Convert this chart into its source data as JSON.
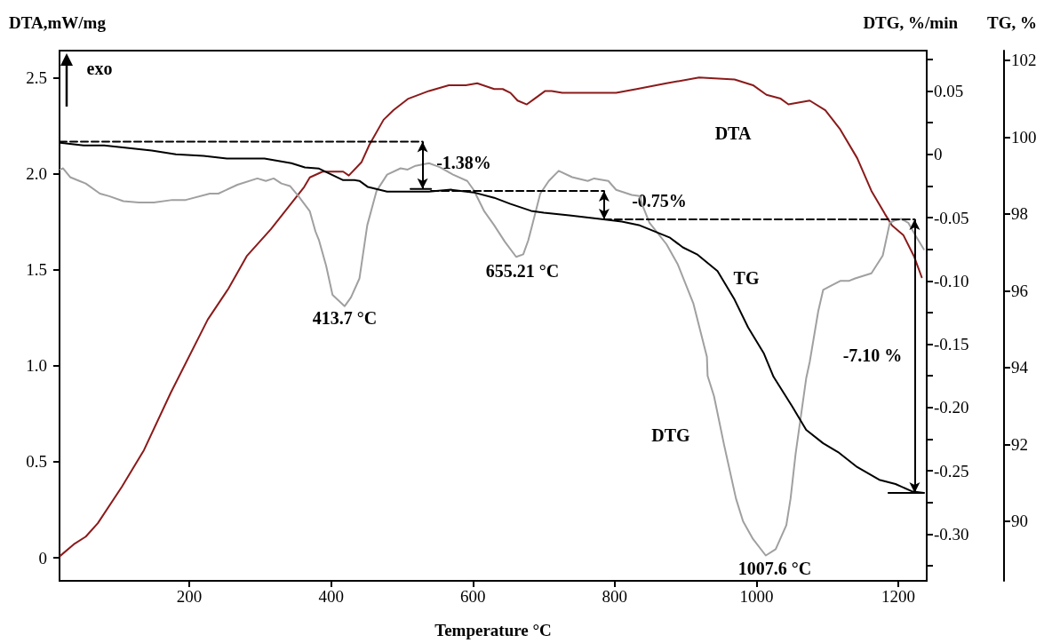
{
  "chart_data": {
    "type": "line",
    "xlabel": "Temperature °C",
    "ylabel": "DTA,mW/mg",
    "y2label": "DTG, %/min",
    "y3label": "TG, %",
    "xlim": [
      17,
      1240
    ],
    "xticks": [
      200,
      400,
      600,
      800,
      1000,
      1200
    ],
    "ylim": [
      -0.12,
      2.64
    ],
    "yticks": [
      0,
      0.5,
      {
        "value": 1,
        "label": "1.0"
      },
      1.5,
      {
        "value": 2,
        "label": "2.0"
      },
      2.5
    ],
    "y2lim": [
      -0.337,
      0.082
    ],
    "y2ticks": [
      {
        "value": -0.325,
        "label": null
      },
      {
        "value": -0.3,
        "label": "-0.30"
      },
      {
        "value": -0.275,
        "label": null
      },
      -0.25,
      {
        "value": -0.225,
        "label": null
      },
      {
        "value": -0.2,
        "label": "-0.20"
      },
      {
        "value": -0.175,
        "label": null
      },
      -0.15,
      {
        "value": -0.125,
        "label": null
      },
      {
        "value": -0.1,
        "label": "-0.10"
      },
      {
        "value": -0.075,
        "label": null
      },
      -0.05,
      {
        "value": -0.025,
        "label": null
      },
      0,
      {
        "value": 0.025,
        "label": null
      },
      0.05,
      {
        "value": 0.075,
        "label": null
      }
    ],
    "y3lim": [
      88.45,
      102.25
    ],
    "y3ticks": [
      90,
      92,
      94,
      96,
      98,
      100,
      102
    ],
    "grid": false,
    "marker": "none",
    "series": [
      {
        "color": "#8b1a1a",
        "x": [
          18,
          37,
          54,
          71,
          105,
          136,
          174,
          226,
          255,
          281,
          315,
          362,
          370,
          388,
          417,
          425,
          443,
          454,
          474,
          488,
          509,
          538,
          566,
          590,
          606,
          630,
          642,
          653,
          663,
          676,
          687,
          702,
          711,
          726,
          802,
          831,
          873,
          919,
          969,
          995,
          1014,
          1034,
          1045,
          1075,
          1097,
          1118,
          1142,
          1162,
          1181,
          1191,
          1207,
          1222,
          1233
        ],
        "values": [
          0.01,
          0.07,
          0.11,
          0.18,
          0.37,
          0.56,
          0.86,
          1.24,
          1.4,
          1.57,
          1.71,
          1.93,
          1.98,
          2.01,
          2.01,
          1.99,
          2.06,
          2.15,
          2.28,
          2.33,
          2.39,
          2.43,
          2.46,
          2.46,
          2.47,
          2.44,
          2.44,
          2.42,
          2.38,
          2.36,
          2.39,
          2.43,
          2.43,
          2.42,
          2.42,
          2.44,
          2.47,
          2.5,
          2.49,
          2.46,
          2.41,
          2.39,
          2.36,
          2.38,
          2.33,
          2.23,
          2.08,
          1.91,
          1.79,
          1.73,
          1.68,
          1.57,
          1.46
        ]
      },
      {
        "color": "#a0a0a0",
        "axis": "y2",
        "x": [
          18,
          22,
          32,
          45,
          54,
          74,
          87,
          107,
          129,
          150,
          176,
          195,
          229,
          241,
          268,
          296,
          308,
          319,
          330,
          342,
          354,
          370,
          378,
          383,
          393,
          402,
          419,
          428,
          440,
          451,
          464,
          479,
          498,
          508,
          519,
          538,
          553,
          572,
          592,
          601,
          616,
          630,
          645,
          661,
          671,
          678,
          685,
          695,
          707,
          721,
          740,
          762,
          771,
          791,
          802,
          824,
          835,
          839,
          849,
          873,
          889,
          911,
          930,
          931,
          940,
          954,
          971,
          981,
          995,
          1013,
          1027,
          1042,
          1048,
          1055,
          1070,
          1075,
          1087,
          1094,
          1104,
          1118,
          1130,
          1139,
          1162,
          1178,
          1188,
          1196,
          1204,
          1214,
          1224,
          1236
        ],
        "values": [
          -0.012,
          -0.011,
          -0.018,
          -0.021,
          -0.023,
          -0.031,
          -0.033,
          -0.037,
          -0.038,
          -0.038,
          -0.036,
          -0.036,
          -0.031,
          -0.031,
          -0.024,
          -0.019,
          -0.021,
          -0.019,
          -0.023,
          -0.025,
          -0.033,
          -0.045,
          -0.061,
          -0.068,
          -0.088,
          -0.111,
          -0.12,
          -0.113,
          -0.098,
          -0.056,
          -0.029,
          -0.016,
          -0.011,
          -0.012,
          -0.009,
          -0.007,
          -0.01,
          -0.016,
          -0.021,
          -0.028,
          -0.045,
          -0.056,
          -0.069,
          -0.081,
          -0.079,
          -0.068,
          -0.053,
          -0.031,
          -0.021,
          -0.013,
          -0.018,
          -0.021,
          -0.019,
          -0.021,
          -0.028,
          -0.032,
          -0.033,
          -0.04,
          -0.054,
          -0.071,
          -0.087,
          -0.118,
          -0.16,
          -0.175,
          -0.191,
          -0.229,
          -0.272,
          -0.29,
          -0.304,
          -0.317,
          -0.312,
          -0.293,
          -0.272,
          -0.237,
          -0.177,
          -0.164,
          -0.124,
          -0.107,
          -0.104,
          -0.1,
          -0.1,
          -0.098,
          -0.094,
          -0.08,
          -0.054,
          -0.052,
          -0.051,
          -0.054,
          -0.064,
          -0.075
        ]
      },
      {
        "color": "#000000",
        "axis": "y3",
        "x": [
          18,
          51,
          80,
          147,
          181,
          220,
          253,
          306,
          344,
          363,
          383,
          417,
          433,
          440,
          452,
          479,
          538,
          569,
          601,
          630,
          653,
          682,
          700,
          736,
          779,
          810,
          834,
          878,
          896,
          916,
          945,
          969,
          988,
          1010,
          1024,
          1050,
          1070,
          1094,
          1115,
          1142,
          1173,
          1196,
          1219,
          1236
        ],
        "values": [
          99.85,
          99.78,
          99.78,
          99.65,
          99.55,
          99.51,
          99.44,
          99.44,
          99.32,
          99.21,
          99.18,
          98.88,
          98.88,
          98.86,
          98.7,
          98.58,
          98.58,
          98.63,
          98.56,
          98.42,
          98.26,
          98.08,
          98.03,
          97.96,
          97.87,
          97.8,
          97.71,
          97.38,
          97.13,
          96.95,
          96.51,
          95.77,
          95.05,
          94.38,
          93.76,
          93.0,
          92.38,
          92.03,
          91.8,
          91.41,
          91.08,
          90.97,
          90.78,
          90.74
        ]
      },
      {
        "color": "#000000",
        "axis": "y3",
        "line_style": "dashed",
        "x": [
          17,
          529
        ],
        "values": [
          99.88,
          99.88
        ]
      },
      {
        "color": "#000000",
        "axis": "y3",
        "line_style": "solid",
        "x": [
          512,
          541
        ],
        "values": [
          98.65,
          98.65
        ]
      },
      {
        "color": "#000000",
        "axis": "y3",
        "line_style": "dashed",
        "x": [
          541,
          785
        ],
        "values": [
          98.6,
          98.6
        ]
      },
      {
        "color": "#000000",
        "axis": "y3",
        "line_style": "dashed",
        "x": [
          785,
          1223
        ],
        "values": [
          97.86,
          97.86
        ]
      },
      {
        "color": "#000000",
        "axis": "y3",
        "line_style": "solid",
        "x": [
          1186,
          1236
        ],
        "values": [
          90.74,
          90.74
        ]
      }
    ],
    "annotations": [
      "exo",
      "DTA",
      "TG",
      "DTG",
      "413.7 °C",
      "655.21 °C",
      "1007.6 °C",
      "-1.38%",
      "-0.75%",
      "-7.10 %"
    ]
  }
}
